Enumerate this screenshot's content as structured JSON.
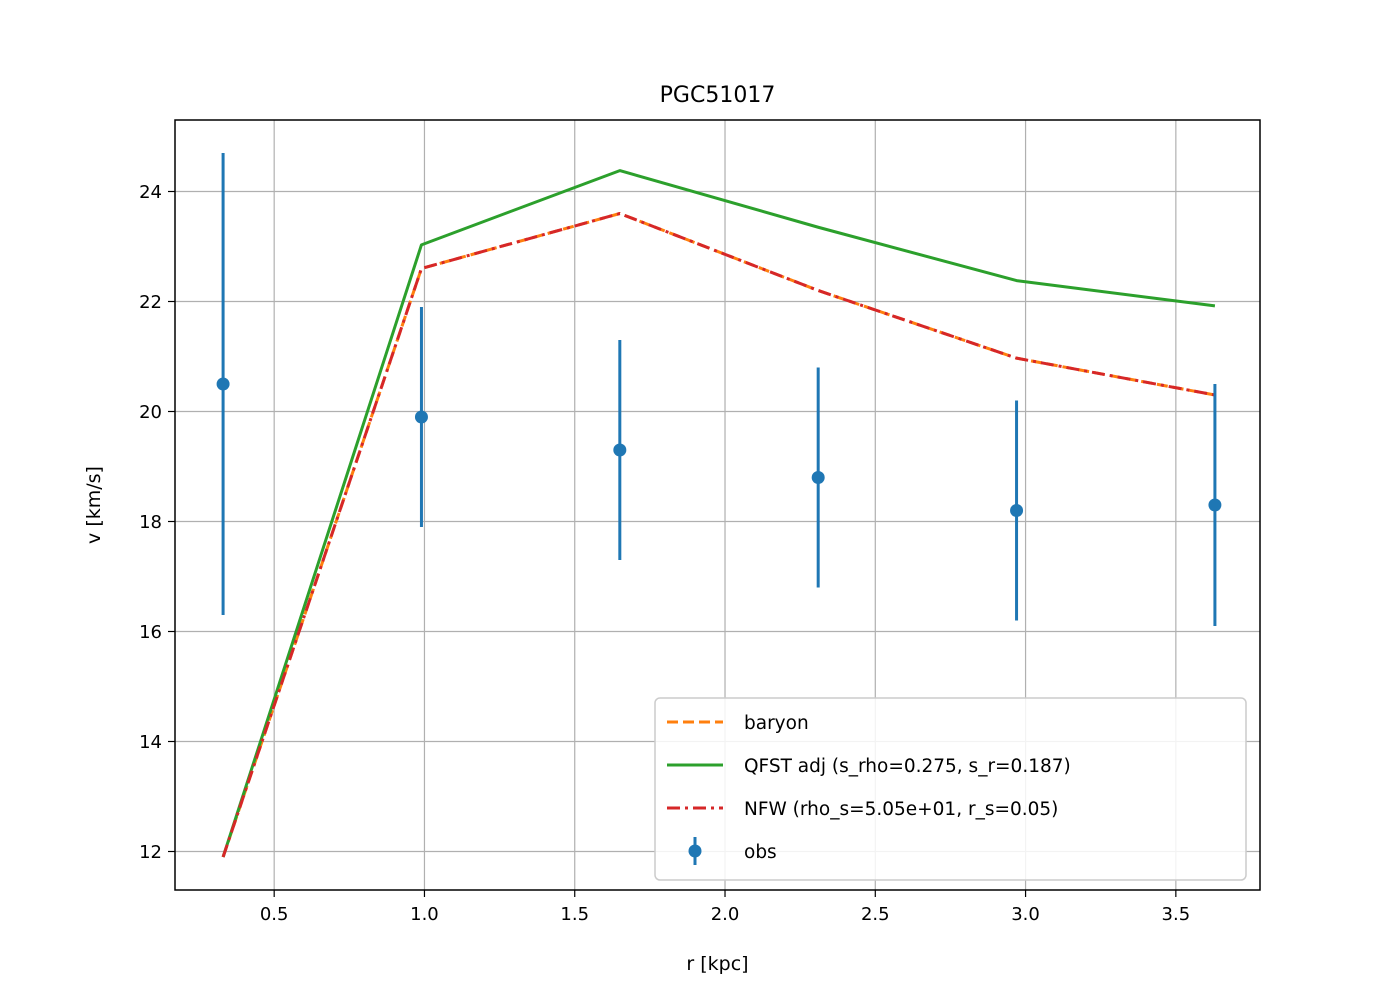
{
  "chart_data": {
    "type": "line",
    "title": "PGC51017",
    "xlabel": "r [kpc]",
    "ylabel": "v [km/s]",
    "xlim": [
      0.17,
      3.78
    ],
    "ylim": [
      11.3,
      25.3
    ],
    "xticks": [
      0.5,
      1.0,
      1.5,
      2.0,
      2.5,
      3.0,
      3.5
    ],
    "xtick_labels": [
      "0.5",
      "1.0",
      "1.5",
      "2.0",
      "2.5",
      "3.0",
      "3.5"
    ],
    "yticks": [
      12,
      14,
      16,
      18,
      20,
      22,
      24
    ],
    "ytick_labels": [
      "12",
      "14",
      "16",
      "18",
      "20",
      "22",
      "24"
    ],
    "grid": true,
    "legend_position": "lower-right",
    "x": [
      0.33,
      0.99,
      1.65,
      2.31,
      2.97,
      3.63
    ],
    "series": [
      {
        "name": "baryon",
        "kind": "line",
        "style": "dashed",
        "color": "#ff7f0e",
        "values": [
          11.9,
          22.6,
          23.6,
          22.2,
          20.97,
          20.3
        ]
      },
      {
        "name": "QFST adj (s_rho=0.275, s_r=0.187)",
        "kind": "line",
        "style": "solid",
        "color": "#2ca02c",
        "values": [
          11.9,
          23.03,
          24.38,
          23.35,
          22.38,
          21.92
        ]
      },
      {
        "name": "NFW (rho_s=5.05e+01, r_s=0.05)",
        "kind": "line",
        "style": "dashdot",
        "color": "#d62728",
        "values": [
          11.9,
          22.6,
          23.6,
          22.2,
          20.97,
          20.3
        ]
      },
      {
        "name": "obs",
        "kind": "errorbar",
        "style": "marker",
        "color": "#1f77b4",
        "values": [
          20.5,
          19.9,
          19.3,
          18.8,
          18.2,
          18.3
        ],
        "errors": [
          4.2,
          2.0,
          2.0,
          2.0,
          2.0,
          2.2
        ]
      }
    ]
  }
}
